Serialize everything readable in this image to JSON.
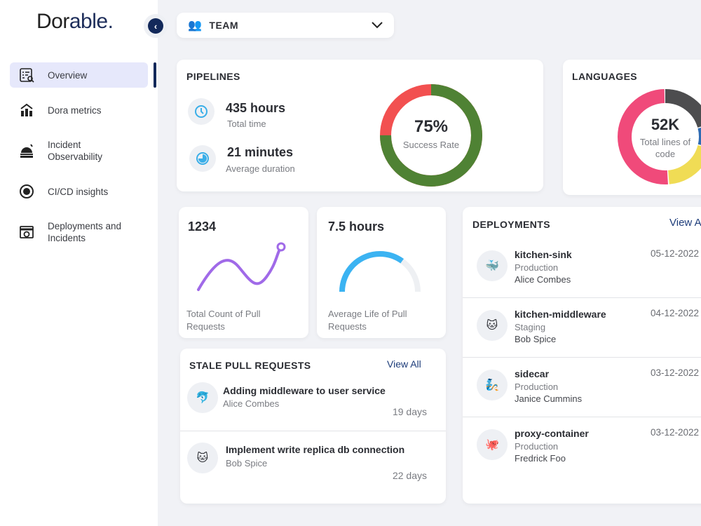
{
  "sidebar": {
    "logo": "Dorable.",
    "items": [
      {
        "label": "Overview",
        "icon": "overview-icon"
      },
      {
        "label": "Dora metrics",
        "icon": "chart-icon"
      },
      {
        "label": "Incident Observability",
        "icon": "observatory-icon"
      },
      {
        "label": "CI/CD insights",
        "icon": "gear-cycle-icon"
      },
      {
        "label": "Deployments and Incidents",
        "icon": "window-alert-icon"
      }
    ]
  },
  "team_select": {
    "label": "TEAM"
  },
  "pipelines": {
    "title": "PIPELINES",
    "total_time": "435 hours",
    "total_time_label": "Total time",
    "avg_duration": "21 minutes",
    "avg_duration_label": "Average duration",
    "success_rate": "75%",
    "success_label": "Success Rate",
    "success_fraction": 0.75,
    "colors": {
      "success": "#4f8234",
      "fail": "#f25050"
    }
  },
  "languages": {
    "title": "LANGUAGES",
    "total": "52K",
    "total_label": "Total lines of code",
    "segments": [
      {
        "share": 0.21,
        "color": "#4d4d4f"
      },
      {
        "share": 0.08,
        "color": "#2e6bb3"
      },
      {
        "share": 0.2,
        "color": "#f0dc55"
      },
      {
        "share": 0.51,
        "color": "#f04a7a"
      }
    ]
  },
  "pull_count": {
    "value": "1234",
    "label": "Total Count of Pull Requests"
  },
  "pull_life": {
    "value": "7.5 hours",
    "label": "Average Life of Pull Requests",
    "gauge_fraction": 0.7
  },
  "stale": {
    "title": "STALE PULL REQUESTS",
    "view_all": "View All",
    "items": [
      {
        "title": "Adding middleware to user service",
        "author": "Alice Combes",
        "age": "19 days"
      },
      {
        "title": "Implement write replica db connection",
        "author": "Bob Spice",
        "age": "22 days"
      }
    ]
  },
  "deployments": {
    "title": "DEPLOYMENTS",
    "view_all": "View All",
    "items": [
      {
        "name": "kitchen-sink",
        "env": "Production",
        "user": "Alice Combes",
        "date": "05-12-2022"
      },
      {
        "name": "kitchen-middleware",
        "env": "Staging",
        "user": "Bob Spice",
        "date": "04-12-2022"
      },
      {
        "name": "sidecar",
        "env": "Production",
        "user": "Janice Cummins",
        "date": "03-12-2022"
      },
      {
        "name": "proxy-container",
        "env": "Production",
        "user": "Fredrick Foo",
        "date": "03-12-2022"
      }
    ]
  }
}
